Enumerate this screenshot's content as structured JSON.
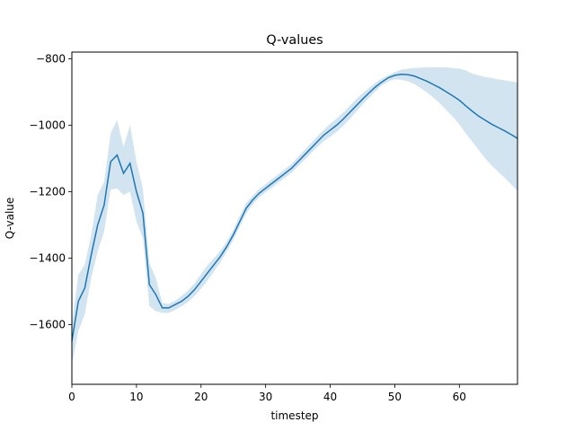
{
  "chart_data": {
    "type": "line",
    "title": "Q-values",
    "xlabel": "timestep",
    "ylabel": "Q-value",
    "xlim": [
      0,
      69
    ],
    "ylim": [
      -1780,
      -780
    ],
    "xticks": [
      0,
      10,
      20,
      30,
      40,
      50,
      60
    ],
    "xtick_labels": [
      "0",
      "10",
      "20",
      "30",
      "40",
      "50",
      "60"
    ],
    "yticks": [
      -800,
      -1000,
      -1200,
      -1400,
      -1600
    ],
    "ytick_labels": [
      "−800",
      "−1000",
      "−1200",
      "−1400",
      "−1600"
    ],
    "grid": false,
    "series": [
      {
        "color": "#1f77b4",
        "band_color": "#1f77b4",
        "band_opacity": 0.2,
        "x": [
          0,
          1,
          2,
          3,
          4,
          5,
          6,
          7,
          8,
          9,
          10,
          11,
          12,
          13,
          14,
          15,
          16,
          17,
          18,
          19,
          20,
          21,
          22,
          23,
          24,
          25,
          26,
          27,
          28,
          29,
          30,
          31,
          32,
          33,
          34,
          35,
          36,
          37,
          38,
          39,
          40,
          41,
          42,
          43,
          44,
          45,
          46,
          47,
          48,
          49,
          50,
          51,
          52,
          53,
          54,
          55,
          56,
          57,
          58,
          59,
          60,
          61,
          62,
          63,
          64,
          65,
          66,
          67,
          68,
          69
        ],
        "values": [
          -1650,
          -1530,
          -1490,
          -1390,
          -1300,
          -1240,
          -1110,
          -1090,
          -1145,
          -1115,
          -1200,
          -1265,
          -1480,
          -1510,
          -1550,
          -1550,
          -1540,
          -1530,
          -1515,
          -1495,
          -1470,
          -1445,
          -1420,
          -1395,
          -1365,
          -1330,
          -1290,
          -1250,
          -1225,
          -1205,
          -1190,
          -1175,
          -1160,
          -1145,
          -1130,
          -1110,
          -1090,
          -1070,
          -1050,
          -1030,
          -1015,
          -1000,
          -982,
          -962,
          -942,
          -922,
          -903,
          -885,
          -870,
          -857,
          -850,
          -847,
          -848,
          -852,
          -860,
          -868,
          -878,
          -888,
          -900,
          -912,
          -925,
          -942,
          -958,
          -973,
          -985,
          -997,
          -1007,
          -1017,
          -1028,
          -1040
        ],
        "lower": [
          -1720,
          -1620,
          -1570,
          -1460,
          -1380,
          -1320,
          -1195,
          -1190,
          -1210,
          -1200,
          -1290,
          -1340,
          -1545,
          -1560,
          -1565,
          -1565,
          -1556,
          -1545,
          -1532,
          -1514,
          -1492,
          -1468,
          -1440,
          -1412,
          -1380,
          -1345,
          -1305,
          -1266,
          -1238,
          -1218,
          -1202,
          -1188,
          -1172,
          -1158,
          -1143,
          -1124,
          -1105,
          -1085,
          -1066,
          -1048,
          -1035,
          -1020,
          -1002,
          -982,
          -960,
          -938,
          -918,
          -898,
          -880,
          -868,
          -862,
          -863,
          -868,
          -876,
          -888,
          -902,
          -918,
          -935,
          -955,
          -975,
          -998,
          -1025,
          -1050,
          -1075,
          -1100,
          -1122,
          -1140,
          -1158,
          -1178,
          -1198
        ],
        "upper": [
          -1600,
          -1450,
          -1420,
          -1330,
          -1210,
          -1170,
          -1025,
          -985,
          -1065,
          -1000,
          -1110,
          -1190,
          -1415,
          -1460,
          -1535,
          -1538,
          -1528,
          -1514,
          -1497,
          -1476,
          -1448,
          -1422,
          -1400,
          -1378,
          -1350,
          -1315,
          -1274,
          -1234,
          -1212,
          -1192,
          -1178,
          -1162,
          -1148,
          -1132,
          -1117,
          -1096,
          -1075,
          -1055,
          -1034,
          -1014,
          -996,
          -980,
          -962,
          -942,
          -922,
          -904,
          -888,
          -872,
          -860,
          -850,
          -840,
          -833,
          -830,
          -828,
          -827,
          -826,
          -826,
          -826,
          -826,
          -828,
          -830,
          -835,
          -845,
          -850,
          -855,
          -858,
          -862,
          -865,
          -868,
          -872
        ]
      }
    ]
  }
}
